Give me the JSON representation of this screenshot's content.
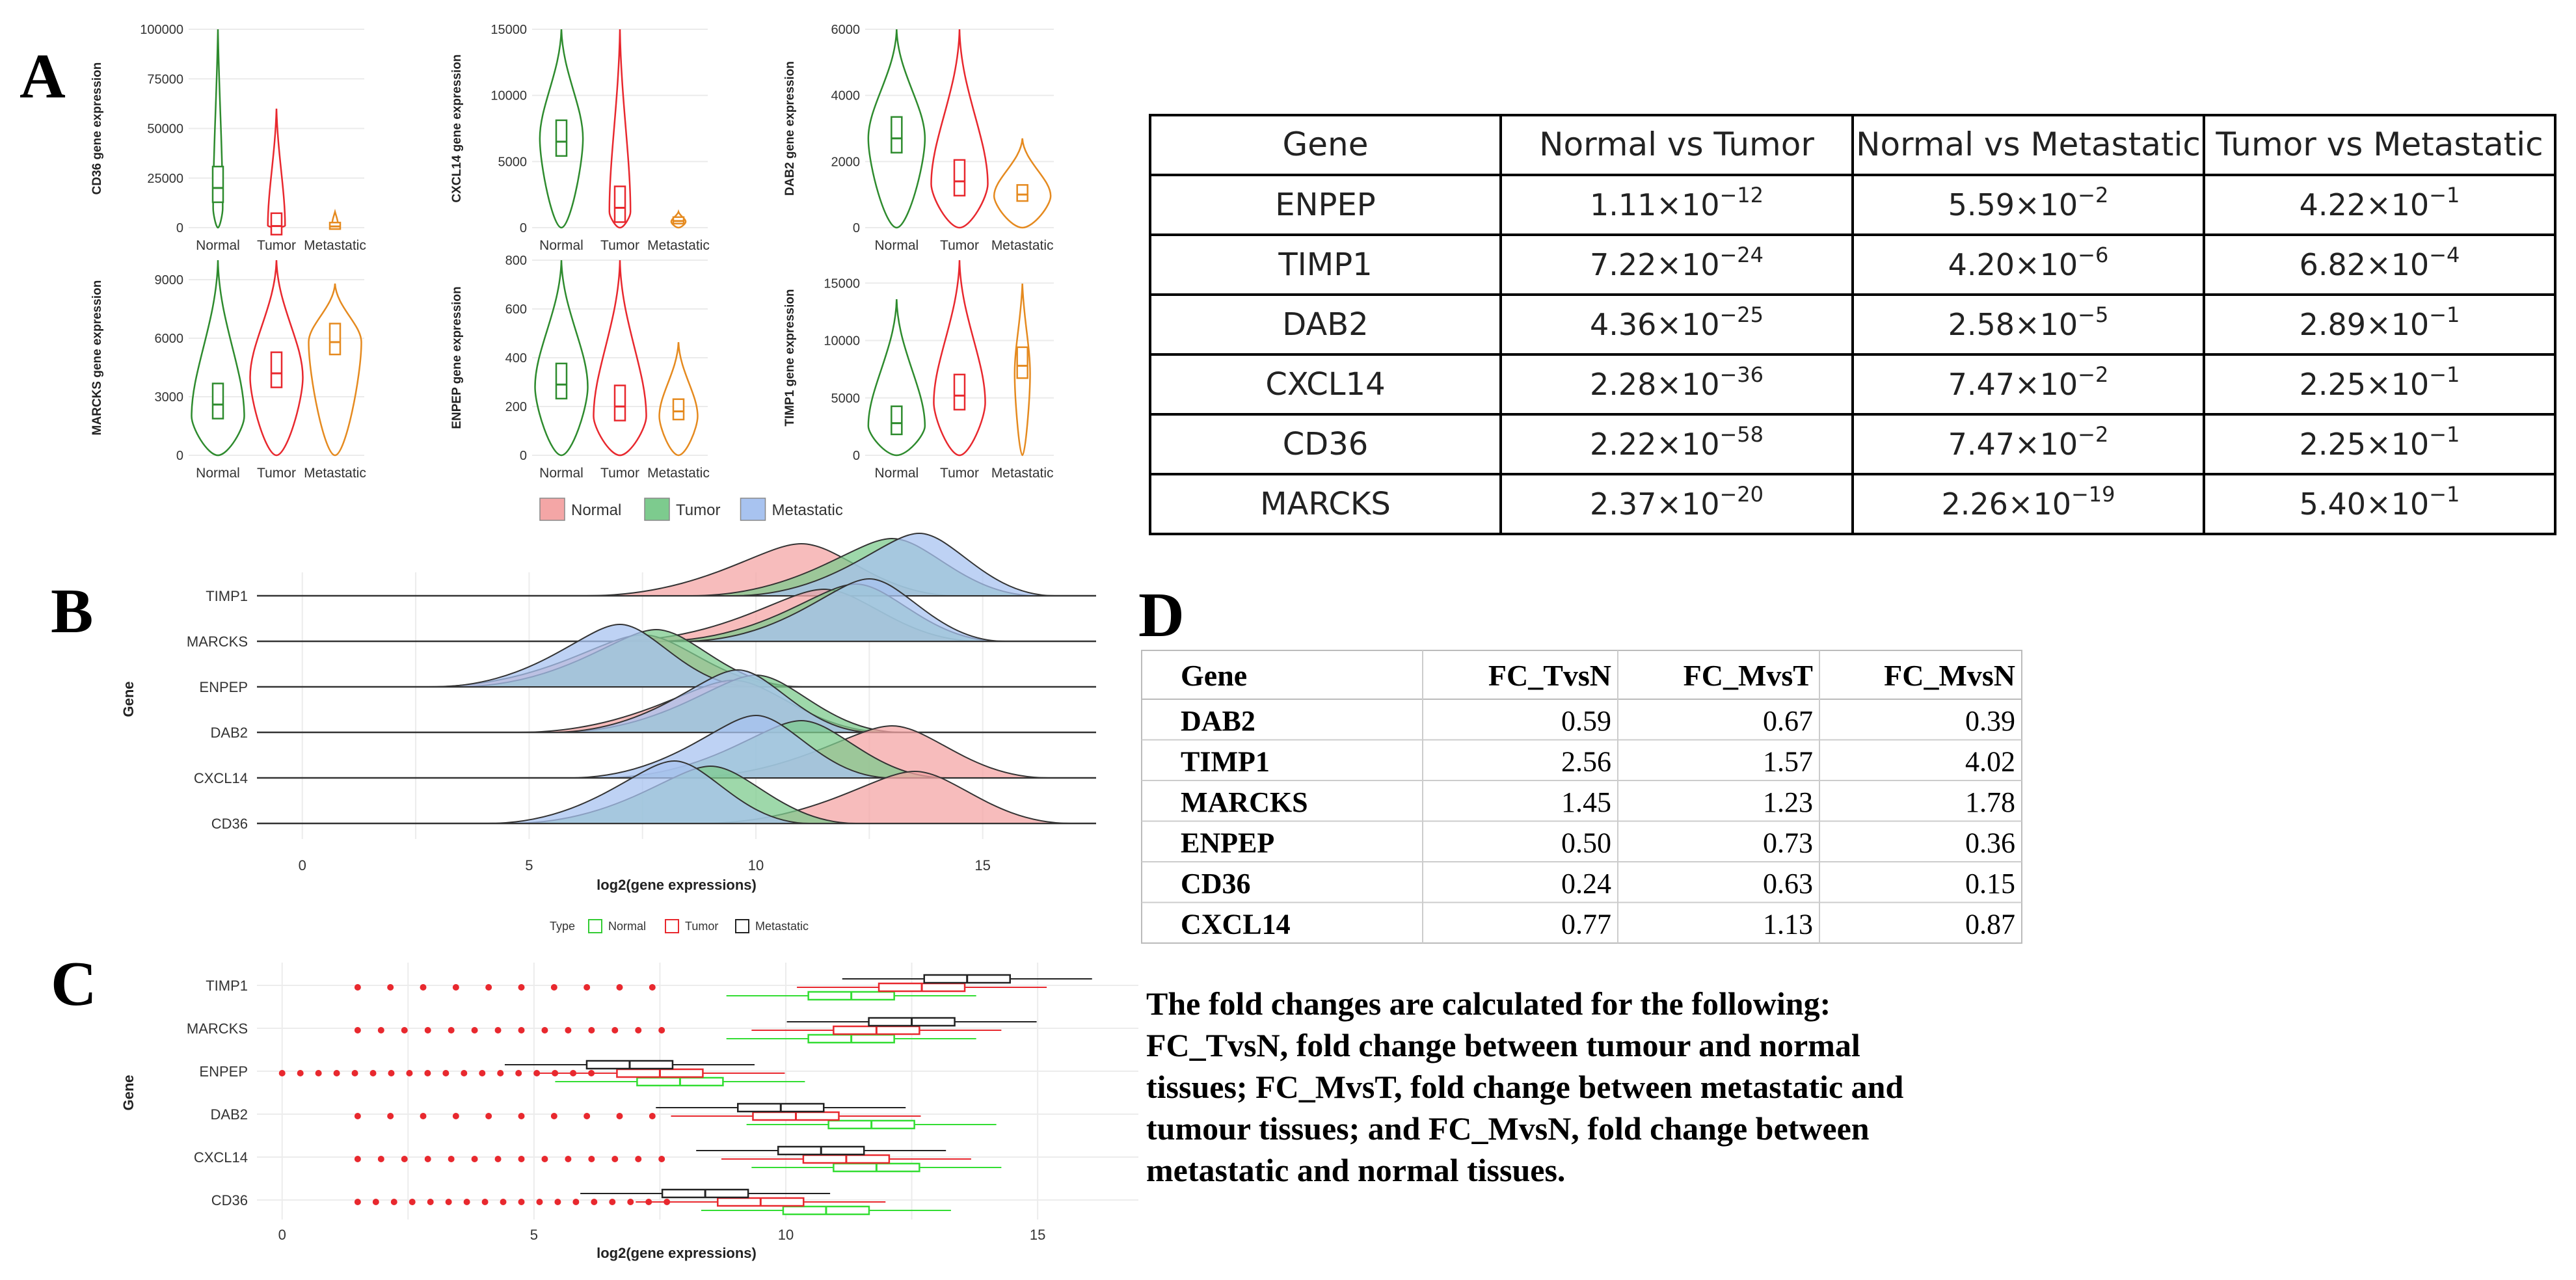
{
  "panels": {
    "A": "A",
    "B": "B",
    "C": "C",
    "D": "D"
  },
  "panel_a": {
    "legend": [
      {
        "label": "Normal",
        "color": "#F4A6A6"
      },
      {
        "label": "Tumor",
        "color": "#7DCB8E"
      },
      {
        "label": "Metastatic",
        "color": "#A8C3F0"
      }
    ],
    "groups": [
      "Normal",
      "Tumor",
      "Metastatic"
    ],
    "group_colors": [
      "#2E8B2E",
      "#E8282E",
      "#E58A1F"
    ]
  },
  "chart_data": [
    {
      "type": "violin",
      "ylabel": "CD36 gene expression",
      "yticks": [
        "0",
        "25000",
        "50000",
        "75000",
        "100000"
      ],
      "ylim": [
        0,
        100000
      ],
      "categories": [
        "Normal",
        "Tumor",
        "Metastatic"
      ],
      "medians": [
        20000,
        800,
        600
      ]
    },
    {
      "type": "violin",
      "ylabel": "CXCL14 gene expression",
      "yticks": [
        "0",
        "5000",
        "10000",
        "15000"
      ],
      "ylim": [
        0,
        15000
      ],
      "categories": [
        "Normal",
        "Tumor",
        "Metastatic"
      ],
      "medians": [
        6500,
        1500,
        500
      ]
    },
    {
      "type": "violin",
      "ylabel": "DAB2 gene expression",
      "yticks": [
        "0",
        "2000",
        "4000",
        "6000"
      ],
      "ylim": [
        0,
        6000
      ],
      "categories": [
        "Normal",
        "Tumor",
        "Metastatic"
      ],
      "medians": [
        2700,
        1400,
        1000
      ]
    },
    {
      "type": "violin",
      "ylabel": "MARCKS gene expression",
      "yticks": [
        "0",
        "3000",
        "6000",
        "9000"
      ],
      "ylim": [
        0,
        10000
      ],
      "categories": [
        "Normal",
        "Tumor",
        "Metastatic"
      ],
      "medians": [
        2600,
        4200,
        5800
      ]
    },
    {
      "type": "violin",
      "ylabel": "ENPEP gene expression",
      "yticks": [
        "0",
        "200",
        "400",
        "600",
        "800"
      ],
      "ylim": [
        0,
        800
      ],
      "categories": [
        "Normal",
        "Tumor",
        "Metastatic"
      ],
      "medians": [
        290,
        200,
        180
      ]
    },
    {
      "type": "violin",
      "ylabel": "TIMP1 gene expression",
      "yticks": [
        "0",
        "5000",
        "10000",
        "15000"
      ],
      "ylim": [
        0,
        17000
      ],
      "categories": [
        "Normal",
        "Tumor",
        "Metastatic"
      ],
      "medians": [
        2800,
        5200,
        7800
      ]
    },
    {
      "type": "ridgeline",
      "xlabel": "log2(gene expressions)",
      "ylabel": "Gene",
      "genes": [
        "TIMP1",
        "MARCKS",
        "ENPEP",
        "DAB2",
        "CXCL14",
        "CD36"
      ],
      "xticks": [
        "0",
        "5",
        "10",
        "15"
      ],
      "xlim": [
        -1,
        17.5
      ],
      "legend_title": "Type",
      "legend": [
        "Normal",
        "Tumor",
        "Metastatic"
      ],
      "peaks": {
        "TIMP1": [
          11,
          13,
          13.6
        ],
        "MARCKS": [
          11.5,
          12.2,
          12.5
        ],
        "ENPEP": [
          7.5,
          7.8,
          7
        ],
        "DAB2": [
          9.5,
          10,
          9.6
        ],
        "CXCL14": [
          13,
          11,
          10
        ],
        "CD36": [
          13.5,
          9,
          8.2
        ]
      }
    },
    {
      "type": "box",
      "xlabel": "log2(gene expressions)",
      "ylabel": "Gene",
      "genes": [
        "TIMP1",
        "MARCKS",
        "ENPEP",
        "DAB2",
        "CXCL14",
        "CD36"
      ],
      "xticks": [
        "0",
        "5",
        "10",
        "15"
      ],
      "xlim": [
        -0.5,
        17
      ],
      "medians": {
        "TIMP1": [
          11.3,
          12.7,
          13.6
        ],
        "MARCKS": [
          11.3,
          11.8,
          12.5
        ],
        "ENPEP": [
          7.9,
          7.5,
          6.9
        ],
        "DAB2": [
          11.7,
          10.2,
          9.9
        ],
        "CXCL14": [
          11.8,
          11.2,
          10.7
        ],
        "CD36": [
          10.8,
          9.5,
          8.4
        ]
      }
    }
  ],
  "pvalue_table": {
    "headers": [
      "Gene",
      "Normal vs Tumor",
      "Normal vs Metastatic",
      "Tumor vs Metastatic"
    ],
    "rows": [
      [
        "ENPEP",
        "1.11×10",
        "−12",
        "5.59×10",
        "−2",
        "4.22×10",
        "−1"
      ],
      [
        "TIMP1",
        "7.22×10",
        "−24",
        "4.20×10",
        "−6",
        "6.82×10",
        "−4"
      ],
      [
        "DAB2",
        "4.36×10",
        "−25",
        "2.58×10",
        "−5",
        "2.89×10",
        "−1"
      ],
      [
        "CXCL14",
        "2.28×10",
        "−36",
        "7.47×10",
        "−2",
        "2.25×10",
        "−1"
      ],
      [
        "CD36",
        "2.22×10",
        "−58",
        "7.47×10",
        "−2",
        "2.25×10",
        "−1"
      ],
      [
        "MARCKS",
        "2.37×10",
        "−20",
        "2.26×10",
        "−19",
        "5.40×10",
        "−1"
      ]
    ]
  },
  "fc_table": {
    "headers": [
      "Gene",
      "FC_TvsN",
      "FC_MvsT",
      "FC_MvsN"
    ],
    "rows": [
      [
        "DAB2",
        "0.59",
        "0.67",
        "0.39"
      ],
      [
        "TIMP1",
        "2.56",
        "1.57",
        "4.02"
      ],
      [
        "MARCKS",
        "1.45",
        "1.23",
        "1.78"
      ],
      [
        "ENPEP",
        "0.50",
        "0.73",
        "0.36"
      ],
      [
        "CD36",
        "0.24",
        "0.63",
        "0.15"
      ],
      [
        "CXCL14",
        "0.77",
        "1.13",
        "0.87"
      ]
    ]
  },
  "caption": [
    "The fold changes are calculated for the following:",
    "FC_TvsN, fold change between tumour and normal",
    "tissues; FC_MvsT, fold change between metastatic and",
    "tumour tissues; and FC_MvsN, fold change between",
    "metastatic and normal tissues."
  ]
}
